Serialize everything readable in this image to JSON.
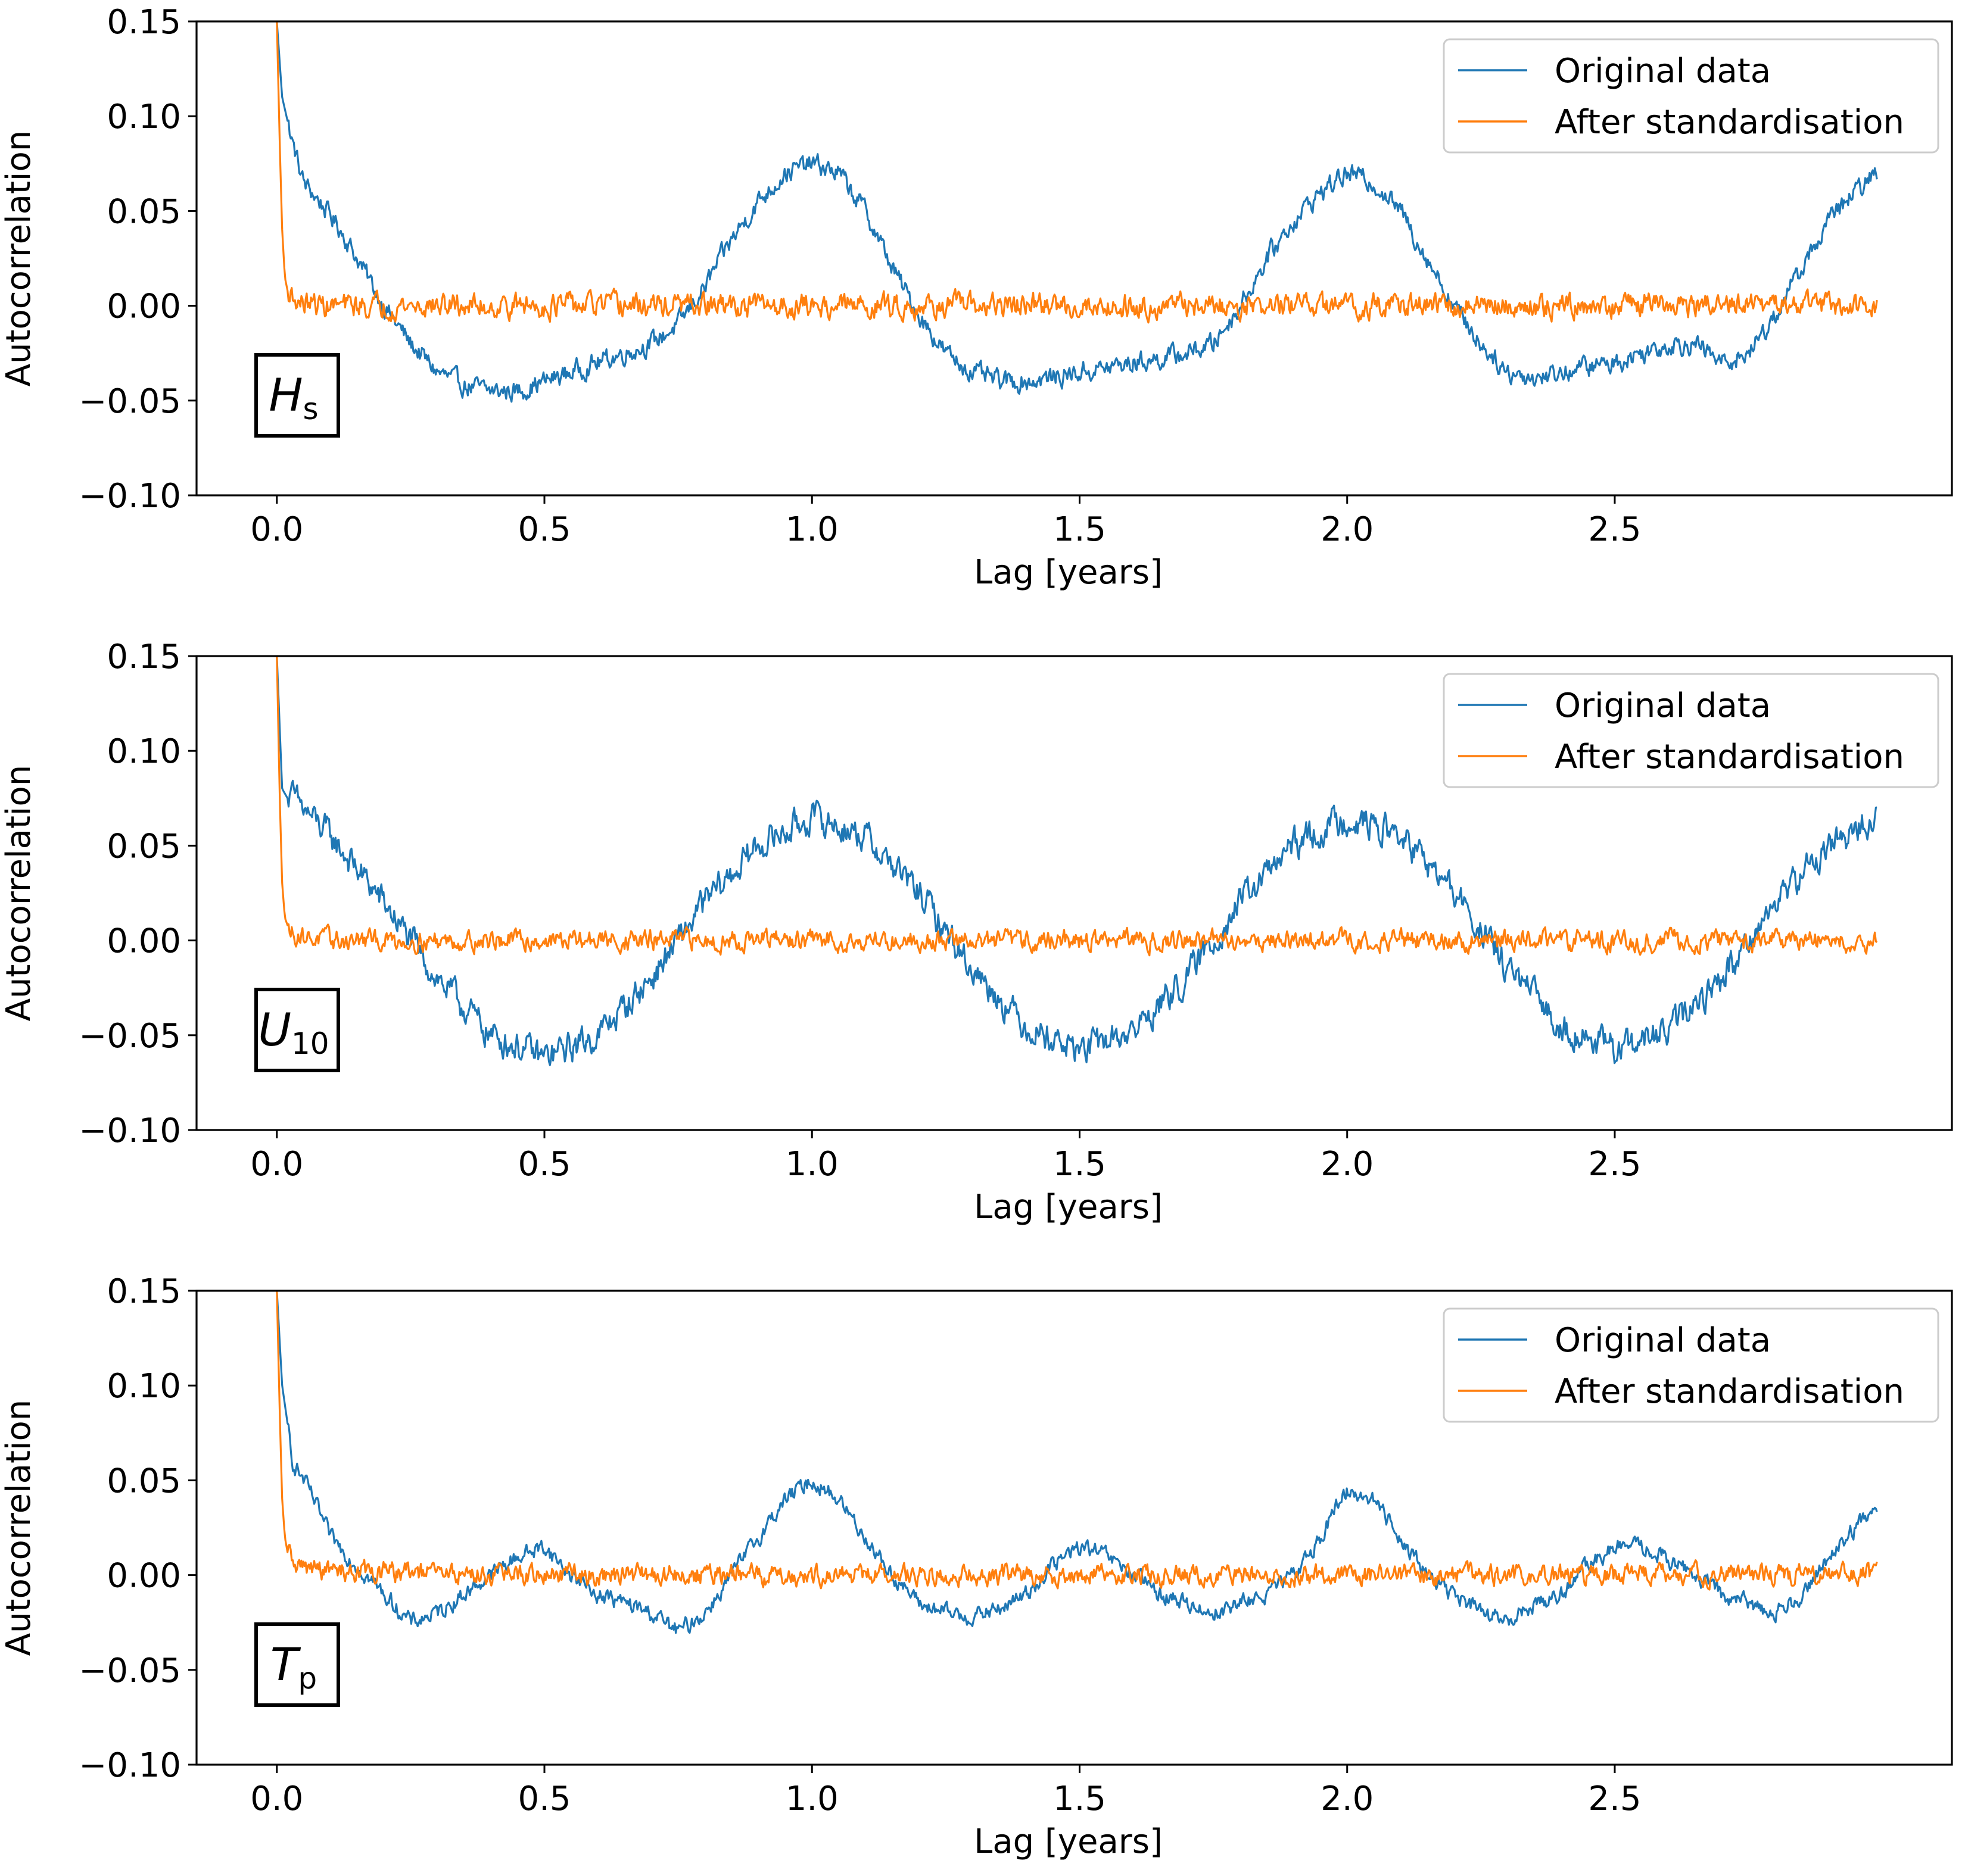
{
  "figure_title": "",
  "colors": {
    "original": "#1f77b4",
    "standardised": "#ff7f0e"
  },
  "chart_data": [
    {
      "type": "line",
      "panel_tag": {
        "symbol": "H",
        "subscript": "s"
      },
      "xlabel": "Lag [years]",
      "ylabel": "Autocorrelation",
      "xlim": [
        -0.15,
        3.13
      ],
      "ylim": [
        -0.1,
        0.15
      ],
      "xticks": [
        "0.0",
        "0.5",
        "1.0",
        "1.5",
        "2.0",
        "2.5"
      ],
      "yticks": [
        "−0.10",
        "−0.05",
        "0.00",
        "0.05",
        "0.10",
        "0.15"
      ],
      "legend": {
        "position": "top-right",
        "entries": [
          "Original data",
          "After standardisation"
        ]
      },
      "series": [
        {
          "name": "Original data",
          "x": [
            0.0,
            0.01,
            0.03,
            0.05,
            0.08,
            0.12,
            0.16,
            0.2,
            0.25,
            0.3,
            0.35,
            0.4,
            0.45,
            0.5,
            0.55,
            0.6,
            0.65,
            0.7,
            0.75,
            0.8,
            0.85,
            0.9,
            0.95,
            1.0,
            1.05,
            1.1,
            1.15,
            1.2,
            1.25,
            1.3,
            1.35,
            1.4,
            1.45,
            1.5,
            1.55,
            1.6,
            1.65,
            1.7,
            1.75,
            1.8,
            1.85,
            1.9,
            1.95,
            2.0,
            2.05,
            2.1,
            2.15,
            2.2,
            2.25,
            2.3,
            2.35,
            2.4,
            2.45,
            2.5,
            2.55,
            2.6,
            2.65,
            2.7,
            2.75,
            2.8,
            2.85,
            2.9,
            2.95,
            2.99
          ],
          "y": [
            0.15,
            0.11,
            0.085,
            0.065,
            0.055,
            0.04,
            0.02,
            0.0,
            -0.02,
            -0.035,
            -0.042,
            -0.045,
            -0.045,
            -0.04,
            -0.035,
            -0.03,
            -0.025,
            -0.02,
            -0.01,
            0.01,
            0.035,
            0.055,
            0.07,
            0.075,
            0.07,
            0.05,
            0.02,
            -0.005,
            -0.025,
            -0.035,
            -0.04,
            -0.04,
            -0.038,
            -0.035,
            -0.033,
            -0.03,
            -0.028,
            -0.025,
            -0.02,
            0.0,
            0.025,
            0.045,
            0.06,
            0.07,
            0.065,
            0.05,
            0.025,
            0.0,
            -0.02,
            -0.035,
            -0.038,
            -0.035,
            -0.032,
            -0.03,
            -0.025,
            -0.02,
            -0.02,
            -0.03,
            -0.025,
            -0.005,
            0.02,
            0.045,
            0.06,
            0.07
          ],
          "noise": 0.006
        },
        {
          "name": "After standardisation",
          "x": [
            0.0,
            0.005,
            0.01,
            0.015,
            0.02,
            0.03,
            0.04,
            0.06,
            0.1,
            0.3,
            0.5,
            0.7,
            0.9,
            1.1,
            1.3,
            1.5,
            1.7,
            1.9,
            2.1,
            2.3,
            2.5,
            2.7,
            2.9,
            2.99
          ],
          "y": [
            0.15,
            0.09,
            0.04,
            0.015,
            0.008,
            0.004,
            0.002,
            0.001,
            0.0,
            0.0,
            0.0,
            0.0,
            0.0,
            0.0,
            0.0,
            0.0,
            0.0,
            0.0,
            0.0,
            0.0,
            0.0,
            0.0,
            0.0,
            0.0
          ],
          "noise": 0.007
        }
      ]
    },
    {
      "type": "line",
      "panel_tag": {
        "symbol": "U",
        "subscript": "10"
      },
      "xlabel": "Lag [years]",
      "ylabel": "Autocorrelation",
      "xlim": [
        -0.15,
        3.13
      ],
      "ylim": [
        -0.1,
        0.15
      ],
      "xticks": [
        "0.0",
        "0.5",
        "1.0",
        "1.5",
        "2.0",
        "2.5"
      ],
      "yticks": [
        "−0.10",
        "−0.05",
        "0.00",
        "0.05",
        "0.10",
        "0.15"
      ],
      "legend": {
        "position": "top-right",
        "entries": [
          "Original data",
          "After standardisation"
        ]
      },
      "series": [
        {
          "name": "Original data",
          "x": [
            0.0,
            0.01,
            0.02,
            0.03,
            0.1,
            0.2,
            0.3,
            0.4,
            0.5,
            0.6,
            0.7,
            0.8,
            0.9,
            1.0,
            1.1,
            1.2,
            1.3,
            1.4,
            1.5,
            1.6,
            1.7,
            1.8,
            1.9,
            2.0,
            2.1,
            2.2,
            2.3,
            2.4,
            2.5,
            2.6,
            2.7,
            2.8,
            2.9,
            2.99
          ],
          "y": [
            0.15,
            0.08,
            0.075,
            0.075,
            0.055,
            0.02,
            -0.02,
            -0.05,
            -0.062,
            -0.05,
            -0.02,
            0.02,
            0.05,
            0.065,
            0.055,
            0.025,
            -0.015,
            -0.045,
            -0.058,
            -0.048,
            -0.02,
            0.02,
            0.05,
            0.065,
            0.055,
            0.025,
            -0.015,
            -0.045,
            -0.058,
            -0.048,
            -0.02,
            0.02,
            0.05,
            0.065
          ],
          "noise": 0.009
        },
        {
          "name": "After standardisation",
          "x": [
            0.0,
            0.005,
            0.01,
            0.015,
            0.02,
            0.03,
            0.05,
            0.1,
            0.5,
            1.0,
            1.5,
            2.0,
            2.5,
            2.99
          ],
          "y": [
            0.15,
            0.08,
            0.03,
            0.012,
            0.008,
            0.004,
            0.002,
            0.0,
            0.0,
            0.0,
            0.0,
            0.0,
            0.0,
            0.0
          ],
          "noise": 0.006
        }
      ]
    },
    {
      "type": "line",
      "panel_tag": {
        "symbol": "T",
        "subscript": "p"
      },
      "xlabel": "Lag [years]",
      "ylabel": "Autocorrelation",
      "xlim": [
        -0.15,
        3.13
      ],
      "ylim": [
        -0.1,
        0.15
      ],
      "xticks": [
        "0.0",
        "0.5",
        "1.0",
        "1.5",
        "2.0",
        "2.5"
      ],
      "yticks": [
        "−0.10",
        "−0.05",
        "0.00",
        "0.05",
        "0.10",
        "0.15"
      ],
      "legend": {
        "position": "top-right",
        "entries": [
          "Original data",
          "After standardisation"
        ]
      },
      "series": [
        {
          "name": "Original data",
          "x": [
            0.0,
            0.01,
            0.03,
            0.06,
            0.1,
            0.15,
            0.2,
            0.25,
            0.3,
            0.35,
            0.4,
            0.45,
            0.5,
            0.55,
            0.6,
            0.65,
            0.7,
            0.75,
            0.8,
            0.85,
            0.9,
            0.95,
            1.0,
            1.05,
            1.1,
            1.15,
            1.2,
            1.25,
            1.3,
            1.35,
            1.4,
            1.45,
            1.5,
            1.55,
            1.6,
            1.65,
            1.7,
            1.75,
            1.8,
            1.85,
            1.9,
            1.95,
            2.0,
            2.05,
            2.1,
            2.15,
            2.2,
            2.25,
            2.3,
            2.35,
            2.4,
            2.45,
            2.5,
            2.55,
            2.6,
            2.65,
            2.7,
            2.75,
            2.8,
            2.85,
            2.9,
            2.95,
            2.99
          ],
          "y": [
            0.15,
            0.1,
            0.06,
            0.045,
            0.02,
            0.005,
            -0.01,
            -0.025,
            -0.02,
            -0.01,
            0.0,
            0.01,
            0.015,
            0.0,
            -0.01,
            -0.015,
            -0.02,
            -0.03,
            -0.02,
            0.0,
            0.02,
            0.04,
            0.05,
            0.04,
            0.02,
            0.0,
            -0.015,
            -0.02,
            -0.022,
            -0.018,
            -0.01,
            0.005,
            0.015,
            0.01,
            0.0,
            -0.01,
            -0.015,
            -0.02,
            -0.015,
            -0.01,
            0.0,
            0.02,
            0.045,
            0.04,
            0.02,
            0.0,
            -0.01,
            -0.02,
            -0.025,
            -0.015,
            -0.01,
            0.005,
            0.015,
            0.015,
            0.008,
            0.0,
            -0.01,
            -0.015,
            -0.02,
            -0.01,
            0.01,
            0.025,
            0.035
          ],
          "noise": 0.005
        },
        {
          "name": "After standardisation",
          "x": [
            0.0,
            0.005,
            0.01,
            0.015,
            0.02,
            0.03,
            0.05,
            0.1,
            0.5,
            1.0,
            1.5,
            2.0,
            2.5,
            2.99
          ],
          "y": [
            0.15,
            0.09,
            0.04,
            0.02,
            0.012,
            0.008,
            0.004,
            0.002,
            0.0,
            0.0,
            0.0,
            0.0,
            0.0,
            0.0
          ],
          "noise": 0.006
        }
      ]
    }
  ]
}
